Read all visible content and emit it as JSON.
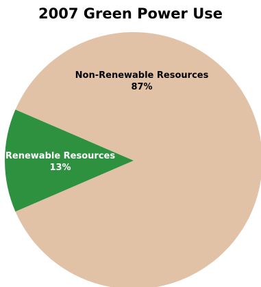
{
  "chart_data": {
    "type": "pie",
    "title": "2007 Green Power Use",
    "slices": [
      {
        "label": "Non-Renewable Resources",
        "value": 87,
        "value_label": "87%",
        "color": "#e2c2a6",
        "label_color": "#000000"
      },
      {
        "label": "Renewable Resources",
        "value": 13,
        "value_label": "13%",
        "color": "#2e9140",
        "label_color": "#ffffff"
      }
    ],
    "legend": "none"
  }
}
